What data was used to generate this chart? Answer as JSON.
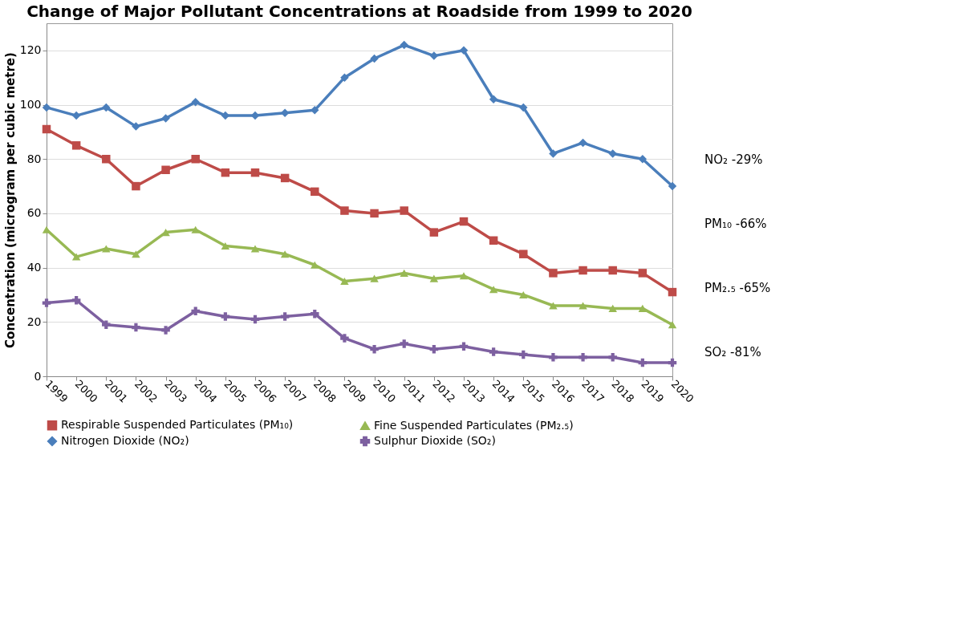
{
  "chart_data": {
    "type": "line",
    "title": "Change of Major Pollutant Concentrations at Roadside from 1999 to 2020",
    "ylabel": "Concentration (microgram per cubic metre)",
    "categories": [
      "1999",
      "2000",
      "2001",
      "2002",
      "2003",
      "2004",
      "2005",
      "2006",
      "2007",
      "2008",
      "2009",
      "2010",
      "2011",
      "2012",
      "2013",
      "2014",
      "2015",
      "2016",
      "2017",
      "2018",
      "2019",
      "2020"
    ],
    "series": [
      {
        "name": "Respirable Suspended Particulates (PM₁₀)",
        "color": "#be4b48",
        "marker": "square",
        "values": [
          91,
          85,
          80,
          70,
          76,
          80,
          75,
          75,
          73,
          68,
          61,
          60,
          61,
          53,
          57,
          50,
          45,
          38,
          39,
          39,
          38,
          31
        ]
      },
      {
        "name": "Fine Suspended Particulates (PM₂.₅)",
        "color": "#98b954",
        "marker": "triangle",
        "values": [
          54,
          44,
          47,
          45,
          53,
          54,
          48,
          47,
          45,
          41,
          35,
          36,
          38,
          36,
          37,
          32,
          30,
          26,
          26,
          25,
          25,
          19
        ]
      },
      {
        "name": "Nitrogen Dioxide (NO₂)",
        "color": "#4a7ebb",
        "marker": "diamond",
        "values": [
          99,
          96,
          99,
          92,
          95,
          101,
          96,
          96,
          97,
          98,
          110,
          117,
          122,
          118,
          120,
          102,
          99,
          82,
          86,
          82,
          80,
          70
        ]
      },
      {
        "name": "Sulphur Dioxide (SO₂)",
        "color": "#7d60a0",
        "marker": "cross",
        "values": [
          27,
          28,
          19,
          18,
          17,
          24,
          22,
          21,
          22,
          23,
          14,
          10,
          12,
          10,
          11,
          9,
          8,
          7,
          7,
          7,
          5,
          5
        ]
      }
    ],
    "ylim": [
      0,
      130
    ],
    "yticks": [
      0,
      20,
      40,
      60,
      80,
      100,
      120
    ],
    "grid": "y",
    "legend": "bottom",
    "line_style": "solid",
    "annotations": [
      "NO₂ -29%",
      "PM₁₀ -66%",
      "PM₂.₅ -65%",
      "SO₂ -81%"
    ]
  }
}
